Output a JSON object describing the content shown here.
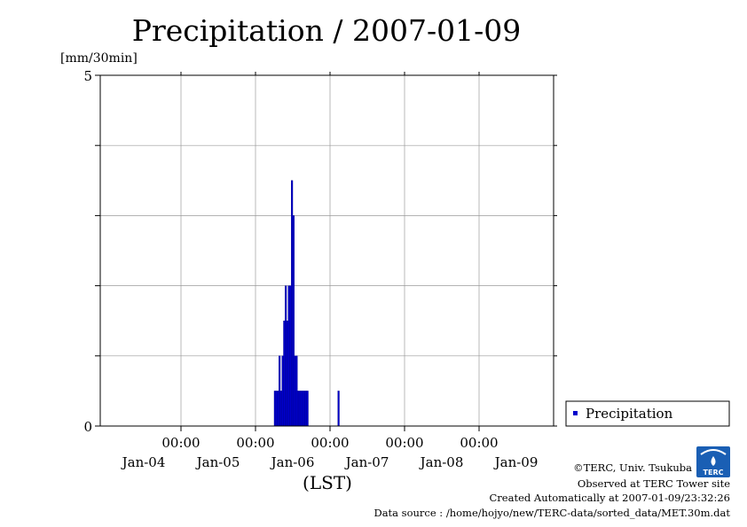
{
  "chart_data": {
    "type": "bar",
    "title": "Precipitation / 2007-01-09",
    "ylabel": "[mm/30min]",
    "xlabel": "(LST)",
    "ylim": [
      0,
      5
    ],
    "y_tick_labels": [
      "0",
      "5"
    ],
    "x_range_hours": [
      -2,
      144
    ],
    "x_ticks": [
      {
        "hour": 24,
        "time": "00:00",
        "date": "Jan-04"
      },
      {
        "hour": 48,
        "time": "00:00",
        "date": "Jan-05"
      },
      {
        "hour": 72,
        "time": "00:00",
        "date": "Jan-06"
      },
      {
        "hour": 96,
        "time": "00:00",
        "date": "Jan-07"
      },
      {
        "hour": 120,
        "time": "00:00",
        "date": "Jan-08"
      },
      {
        "hour": 144,
        "time": "",
        "date": "Jan-09"
      }
    ],
    "grid": true,
    "legend_position": "right",
    "series": [
      {
        "name": "Precipitation",
        "color": "#0000cc",
        "x_hours": [
          54.5,
          55.0,
          55.5,
          56.0,
          56.5,
          57.0,
          57.5,
          58.0,
          58.5,
          59.0,
          59.5,
          60.0,
          60.5,
          61.0,
          61.5,
          62.0,
          62.5,
          63.0,
          63.5,
          64.0,
          64.5,
          65.0,
          75.0
        ],
        "values": [
          0.5,
          0.5,
          0.5,
          1.0,
          0.5,
          1.0,
          1.5,
          2.0,
          1.5,
          2.0,
          2.0,
          3.5,
          3.0,
          1.0,
          1.0,
          0.5,
          0.5,
          0.5,
          0.5,
          0.5,
          0.5,
          0.5,
          0.5
        ]
      }
    ]
  },
  "credits": {
    "copyright": "©TERC, Univ. Tsukuba",
    "observed": "Observed at TERC Tower site",
    "created": "Created Automatically at 2007-01-09/23:32:26",
    "source": "Data source : /home/hojyo/new/TERC-data/sorted_data/MET.30m.dat"
  },
  "logo": {
    "text": "TERC",
    "color": "#1a5fb4"
  }
}
